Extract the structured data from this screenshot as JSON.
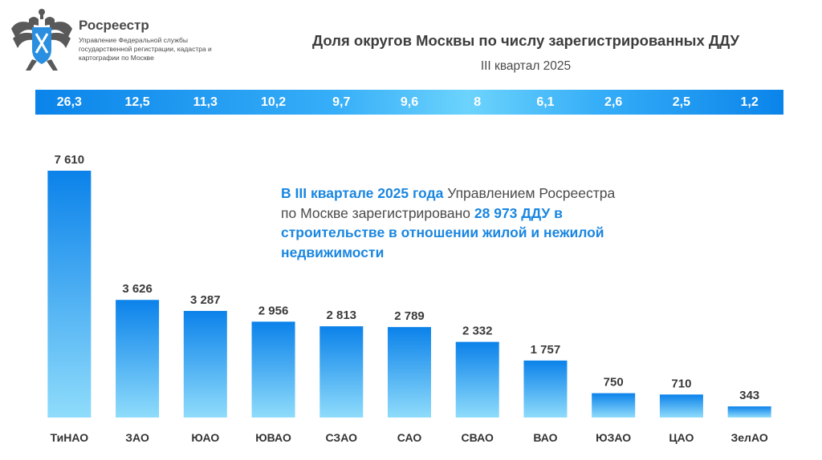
{
  "header": {
    "brand_name": "Росреестр",
    "brand_sub": "Управление Федеральной службы государственной регистрации, кадастра и картографии по Москве",
    "logo_icon": "double-headed-eagle-emblem-icon"
  },
  "colors": {
    "bar_top": "#0b82ea",
    "bar_bottom": "#8fdcfb",
    "band_edge": "#0a84ea",
    "band_mid": "#6cd3fc",
    "accent_text": "#1a86e0"
  },
  "chart_data": {
    "type": "bar",
    "title": "Доля округов Москвы по числу зарегистрированных ДДУ",
    "subtitle": "III квартал 2025",
    "categories": [
      "ТиНАО",
      "ЗАО",
      "ЮАО",
      "ЮВАО",
      "СЗАО",
      "САО",
      "СВАО",
      "ВАО",
      "ЮЗАО",
      "ЦАО",
      "ЗелАО"
    ],
    "values": [
      7610,
      3626,
      3287,
      2956,
      2813,
      2789,
      2332,
      1757,
      750,
      710,
      343
    ],
    "value_labels": [
      "7 610",
      "3 626",
      "3 287",
      "2 956",
      "2 813",
      "2 789",
      "2 332",
      "1 757",
      "750",
      "710",
      "343"
    ],
    "share_labels": [
      "26,3",
      "12,5",
      "11,3",
      "10,2",
      "9,7",
      "9,6",
      "8",
      "6,1",
      "2,6",
      "2,5",
      "1,2"
    ],
    "xlabel": "",
    "ylabel": "",
    "ylim": [
      0,
      7610
    ],
    "grid": false,
    "legend": "none"
  },
  "note": {
    "part1": "В III квартале 2025 года",
    "part2": " Управлением Росреестра по Москве зарегистрировано ",
    "part3": "28 973 ДДУ в строительстве в отношении жилой и нежилой недвижимости"
  }
}
